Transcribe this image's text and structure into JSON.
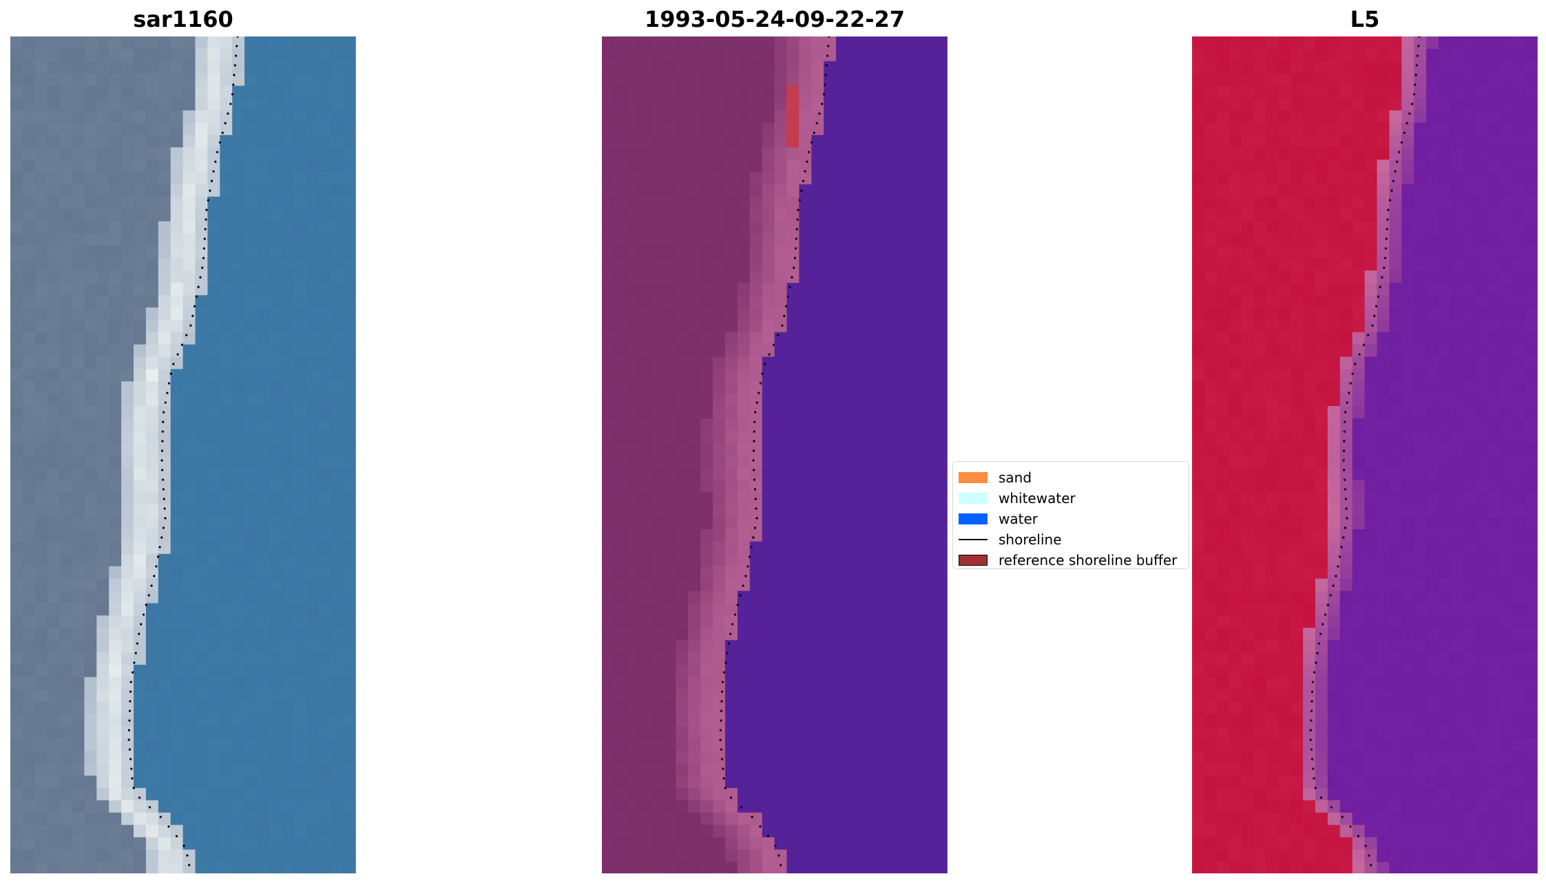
{
  "panels": [
    {
      "title": "sar1160",
      "kind": "rgb"
    },
    {
      "title": "1993-05-24-09-22-27",
      "kind": "classified"
    },
    {
      "title": "L5",
      "kind": "ndwi"
    }
  ],
  "legend": {
    "items": [
      {
        "label": "sand",
        "type": "patch",
        "color": "#ff8c3f"
      },
      {
        "label": "whitewater",
        "type": "patch",
        "color": "#ccffff"
      },
      {
        "label": "water",
        "type": "patch",
        "color": "#0061ff"
      },
      {
        "label": "shoreline",
        "type": "line",
        "color": "#000000"
      },
      {
        "label": "reference shoreline buffer",
        "type": "patch",
        "color": "#a13033"
      }
    ]
  },
  "colors": {
    "rgb_land": "#6c7f96",
    "rgb_beach": "#e9eeee",
    "rgb_water": "#3d7aa6",
    "class_land": "#7c2f69",
    "class_sand": "#b45f93",
    "class_water": "#55229a",
    "class_buffer": "#c43c50",
    "ndwi_land": "#c4133f",
    "ndwi_transition": "#c86a9c",
    "ndwi_water": "#6e1e9e"
  }
}
